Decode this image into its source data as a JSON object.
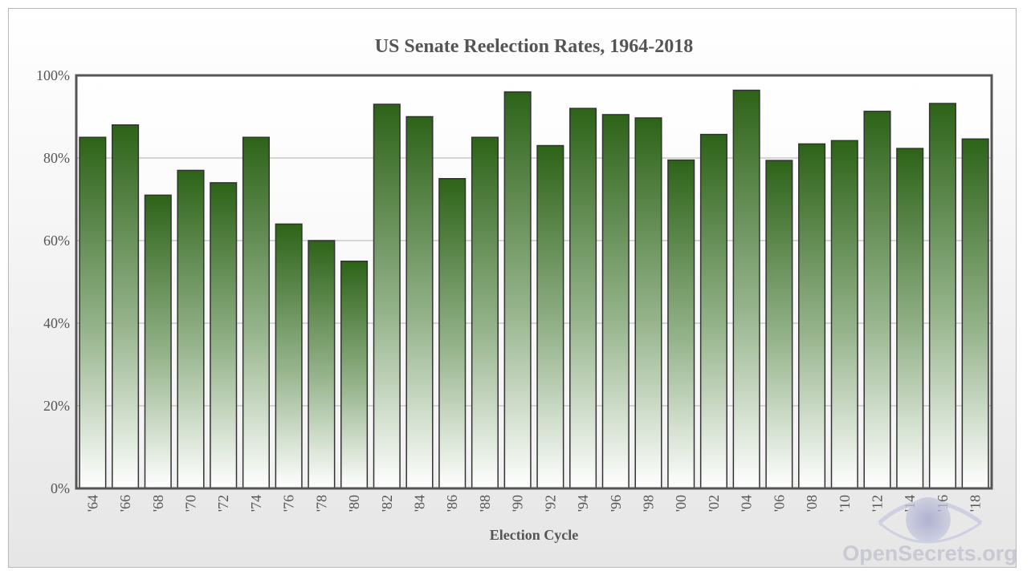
{
  "chart_data": {
    "type": "bar",
    "title": "US Senate Reelection Rates, 1964-2018",
    "xlabel": "Election Cycle",
    "ylabel": "",
    "ylim": [
      0,
      100
    ],
    "yticks": [
      0,
      20,
      40,
      60,
      80,
      100
    ],
    "ytick_labels": [
      "0%",
      "20%",
      "40%",
      "60%",
      "80%",
      "100%"
    ],
    "grid": true,
    "legend": "none",
    "categories": [
      "'64",
      "'66",
      "'68",
      "'70",
      "'72",
      "'74",
      "'76",
      "'78",
      "'80",
      "'82",
      "'84",
      "'86",
      "'88",
      "'90",
      "'92",
      "'94",
      "'96",
      "'98",
      "'00",
      "'02",
      "'04",
      "'06",
      "'08",
      "'10",
      "'12",
      "'14",
      "'16",
      "'18"
    ],
    "values": [
      85,
      88,
      71,
      77,
      74,
      85,
      64,
      60,
      55,
      93,
      90,
      75,
      85,
      96,
      83,
      92,
      90.5,
      89.7,
      79.5,
      85.7,
      96.4,
      79.4,
      83.4,
      84.2,
      91.3,
      82.3,
      93.2,
      84.6
    ],
    "colors": {
      "bar_top": "#2d6318",
      "bar_bottom": "#ffffff",
      "bar_border": "#333333",
      "axis": "#555555",
      "grid": "#c8c8c8"
    }
  },
  "watermark": {
    "text": "OpenSecrets.org",
    "icon": "eye-logo-icon"
  }
}
